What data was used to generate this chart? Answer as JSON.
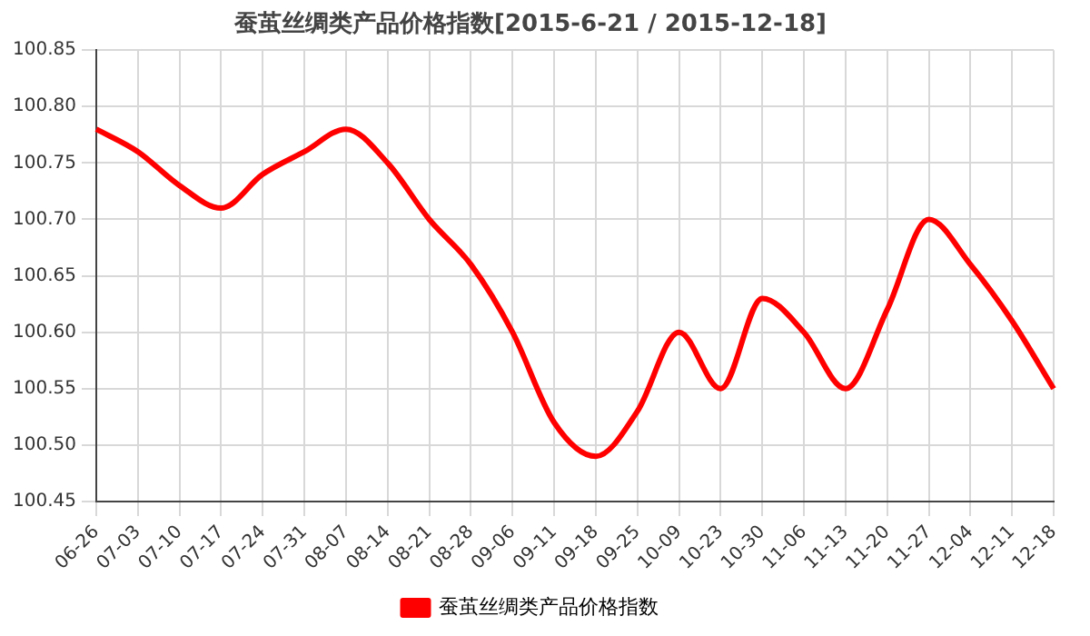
{
  "chart_data": {
    "type": "line",
    "title": "蚕茧丝绸类产品价格指数[2015-6-21 / 2015-12-18]",
    "categories": [
      "06-26",
      "07-03",
      "07-10",
      "07-17",
      "07-24",
      "07-31",
      "08-07",
      "08-14",
      "08-21",
      "08-28",
      "09-06",
      "09-11",
      "09-18",
      "09-25",
      "10-09",
      "10-23",
      "10-30",
      "11-06",
      "11-13",
      "11-20",
      "11-27",
      "12-04",
      "12-11",
      "12-18"
    ],
    "series": [
      {
        "name": "蚕茧丝绸类产品价格指数",
        "color": "#ff0000",
        "values": [
          100.78,
          100.76,
          100.73,
          100.71,
          100.74,
          100.76,
          100.78,
          100.75,
          100.7,
          100.66,
          100.6,
          100.52,
          100.49,
          100.53,
          100.6,
          100.55,
          100.63,
          100.6,
          100.55,
          100.62,
          100.7,
          100.66,
          100.61,
          100.55
        ]
      }
    ],
    "ylim": [
      100.45,
      100.85
    ],
    "yticks": [
      100.45,
      {
        "value": 100.5,
        "label": "100.50"
      },
      100.55,
      {
        "value": 100.6,
        "label": "100.60"
      },
      100.65,
      {
        "value": 100.7,
        "label": "100.70"
      },
      100.75,
      {
        "value": 100.8,
        "label": "100.80"
      },
      100.85
    ],
    "grid": true,
    "legend": "bottom",
    "marker": "none",
    "line_style": "solid"
  }
}
